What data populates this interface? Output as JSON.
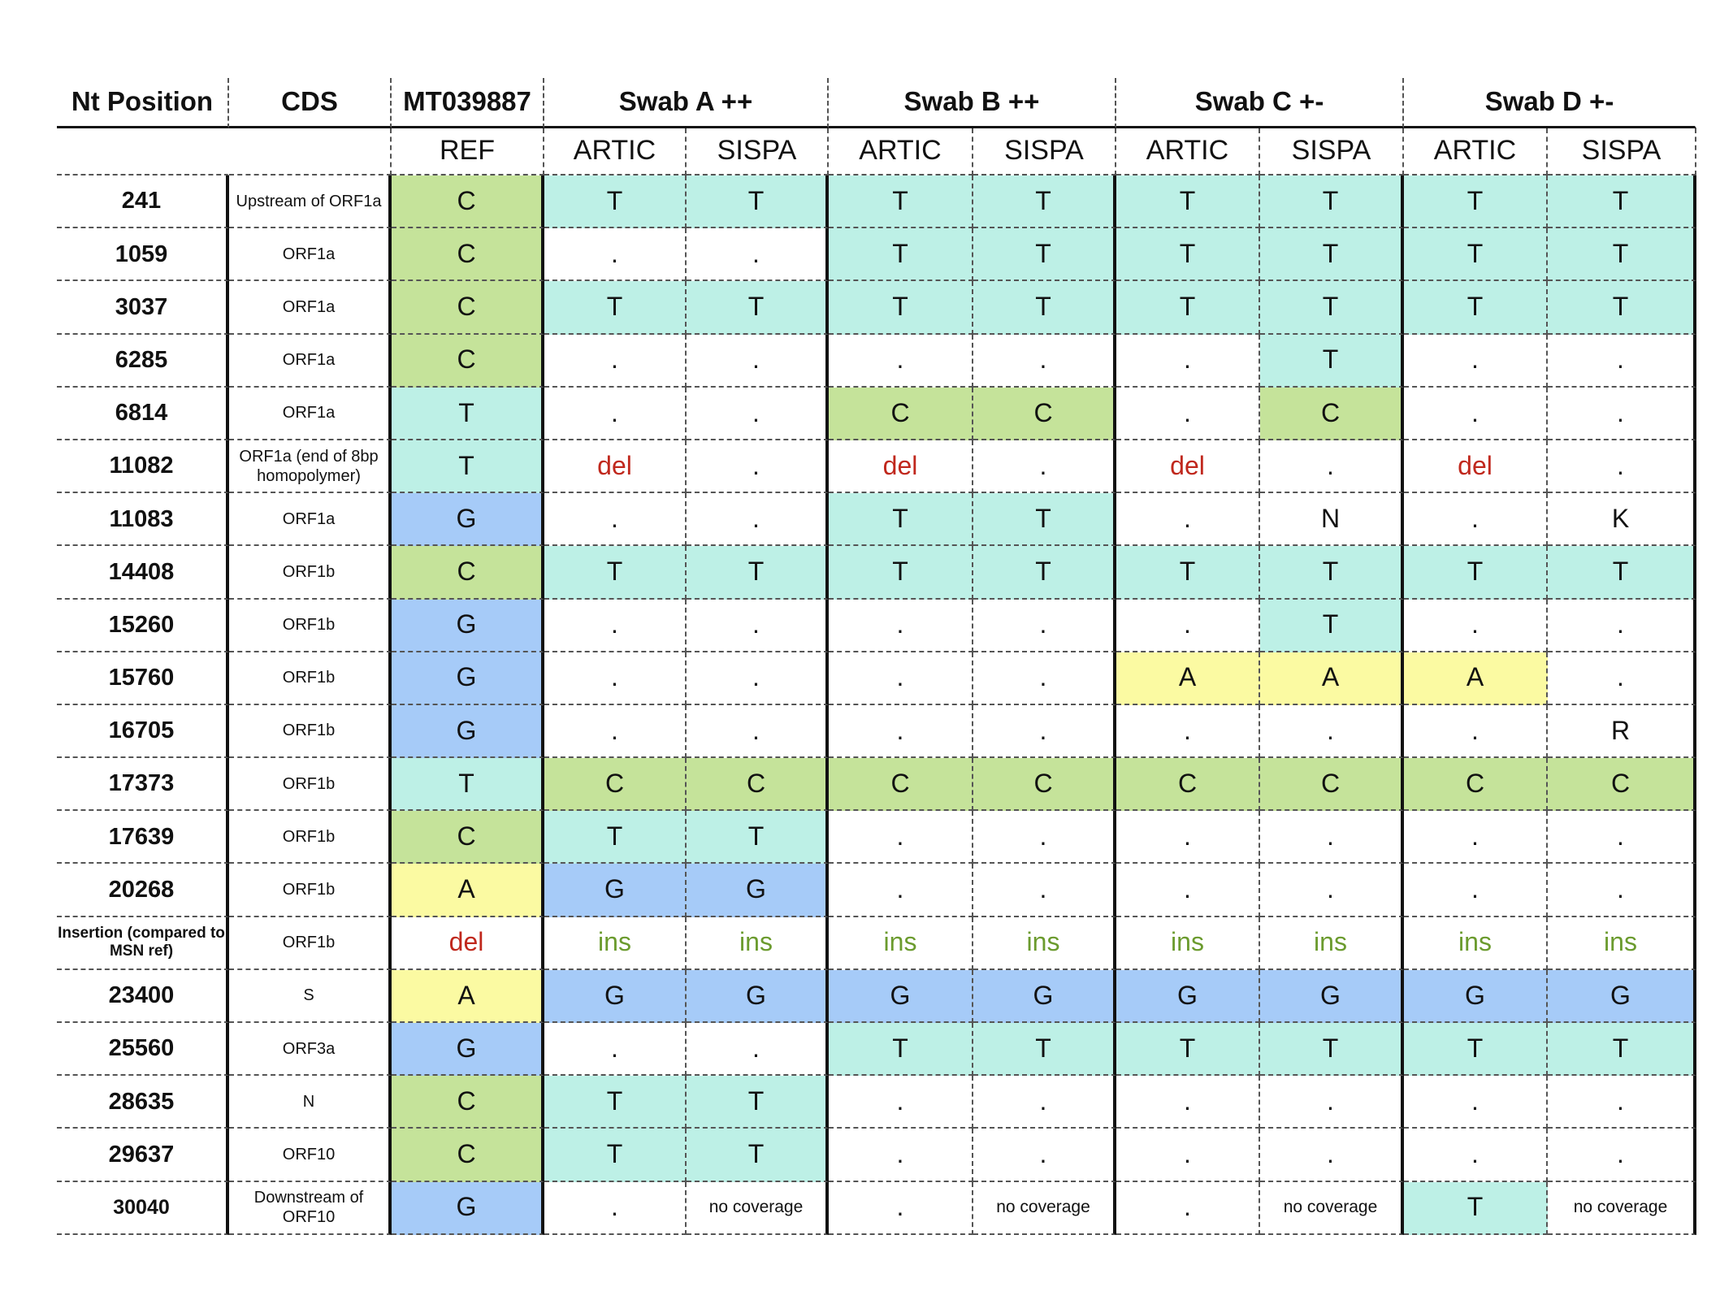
{
  "header": {
    "nt_position": "Nt Position",
    "cds": "CDS",
    "ref_genome": "MT039887",
    "swabs": [
      "Swab A ++",
      "Swab B ++",
      "Swab C  +-",
      "Swab D +-"
    ],
    "ref_sub": "REF",
    "method_a": "ARTIC",
    "method_b": "SISPA"
  },
  "colors": {
    "C": "#c5e39a",
    "T": "#bdf0e6",
    "G": "#a6cbf8",
    "A": "#fbfaa2",
    "del_text": "#c0281d",
    "ins_text": "#6b9b2e"
  },
  "rows": [
    {
      "pos": "241",
      "cds": "Upstream of ORF1a",
      "ref": "C",
      "calls": [
        "T",
        "T",
        "T",
        "T",
        "T",
        "T",
        "T",
        "T"
      ]
    },
    {
      "pos": "1059",
      "cds": "ORF1a",
      "ref": "C",
      "calls": [
        ".",
        ".",
        "T",
        "T",
        "T",
        "T",
        "T",
        "T"
      ]
    },
    {
      "pos": "3037",
      "cds": "ORF1a",
      "ref": "C",
      "calls": [
        "T",
        "T",
        "T",
        "T",
        "T",
        "T",
        "T",
        "T"
      ]
    },
    {
      "pos": "6285",
      "cds": "ORF1a",
      "ref": "C",
      "calls": [
        ".",
        ".",
        ".",
        ".",
        ".",
        "T",
        ".",
        "."
      ]
    },
    {
      "pos": "6814",
      "cds": "ORF1a",
      "ref": "T",
      "calls": [
        ".",
        ".",
        "C",
        "C",
        ".",
        "C",
        ".",
        "."
      ]
    },
    {
      "pos": "11082",
      "cds": "ORF1a (end of 8bp homopolymer)",
      "ref": "T",
      "calls": [
        "del",
        ".",
        "del",
        ".",
        "del",
        ".",
        "del",
        "."
      ]
    },
    {
      "pos": "11083",
      "cds": "ORF1a",
      "ref": "G",
      "calls": [
        ".",
        ".",
        "T",
        "T",
        ".",
        "N",
        ".",
        "K"
      ]
    },
    {
      "pos": "14408",
      "cds": "ORF1b",
      "ref": "C",
      "calls": [
        "T",
        "T",
        "T",
        "T",
        "T",
        "T",
        "T",
        "T"
      ]
    },
    {
      "pos": "15260",
      "cds": "ORF1b",
      "ref": "G",
      "calls": [
        ".",
        ".",
        ".",
        ".",
        ".",
        "T",
        ".",
        "."
      ]
    },
    {
      "pos": "15760",
      "cds": "ORF1b",
      "ref": "G",
      "calls": [
        ".",
        ".",
        ".",
        ".",
        "A",
        "A",
        "A",
        "."
      ]
    },
    {
      "pos": "16705",
      "cds": "ORF1b",
      "ref": "G",
      "calls": [
        ".",
        ".",
        ".",
        ".",
        ".",
        ".",
        ".",
        "R"
      ]
    },
    {
      "pos": "17373",
      "cds": "ORF1b",
      "ref": "T",
      "calls": [
        "C",
        "C",
        "C",
        "C",
        "C",
        "C",
        "C",
        "C"
      ]
    },
    {
      "pos": "17639",
      "cds": "ORF1b",
      "ref": "C",
      "calls": [
        "T",
        "T",
        ".",
        ".",
        ".",
        ".",
        ".",
        "."
      ]
    },
    {
      "pos": "20268",
      "cds": "ORF1b",
      "ref": "A",
      "calls": [
        "G",
        "G",
        ".",
        ".",
        ".",
        ".",
        ".",
        "."
      ]
    },
    {
      "pos": "Insertion (compared to MSN ref)",
      "cds": "ORF1b",
      "ref": "del",
      "calls": [
        "ins",
        "ins",
        "ins",
        "ins",
        "ins",
        "ins",
        "ins",
        "ins"
      ]
    },
    {
      "pos": "23400",
      "cds": "S",
      "ref": "A",
      "calls": [
        "G",
        "G",
        "G",
        "G",
        "G",
        "G",
        "G",
        "G"
      ]
    },
    {
      "pos": "25560",
      "cds": "ORF3a",
      "ref": "G",
      "calls": [
        ".",
        ".",
        "T",
        "T",
        "T",
        "T",
        "T",
        "T"
      ]
    },
    {
      "pos": "28635",
      "cds": "N",
      "ref": "C",
      "calls": [
        "T",
        "T",
        ".",
        ".",
        ".",
        ".",
        ".",
        "."
      ]
    },
    {
      "pos": "29637",
      "cds": "ORF10",
      "ref": "C",
      "calls": [
        "T",
        "T",
        ".",
        ".",
        ".",
        ".",
        ".",
        "."
      ]
    },
    {
      "pos": "30040",
      "cds": "Downstream of ORF10",
      "ref": "G",
      "calls": [
        ".",
        "no coverage",
        ".",
        "no coverage",
        ".",
        "no coverage",
        "T",
        "no coverage"
      ]
    }
  ]
}
